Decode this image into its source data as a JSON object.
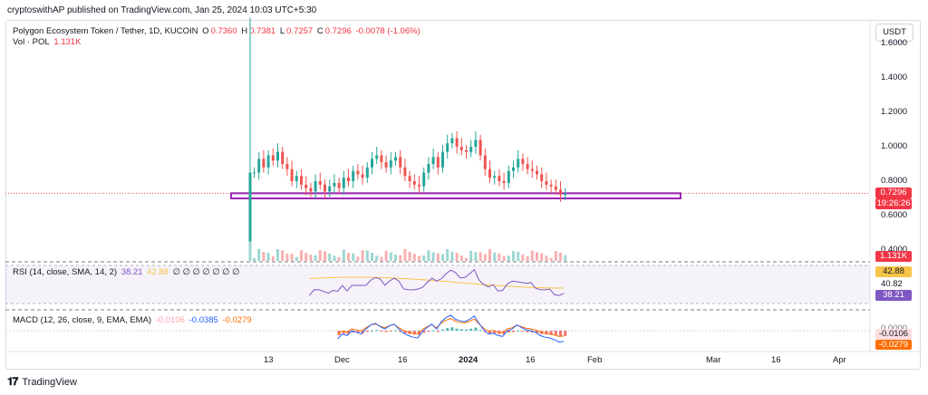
{
  "publisher": "cryptoswithAP published on TradingView.com, Jan 25, 2024 10:03 UTC+5:30",
  "legend": {
    "symbol": "Polygon Ecosystem Token / Tether, 1D, KUCOIN",
    "o_label": "O",
    "o_value": "0.7360",
    "h_label": "H",
    "h_value": "0.7381",
    "l_label": "L",
    "l_value": "0.7257",
    "c_label": "C",
    "c_value": "0.7296",
    "change": "-0.0078 (-1.06%)",
    "vol_label": "Vol · POL",
    "vol_value": "1.131K"
  },
  "rsi_legend": {
    "label": "RSI (14, close, SMA, 14, 2)",
    "rsi_value": "38.21",
    "sma_value": "42.88",
    "extras": "∅ ∅ ∅ ∅ ∅ ∅ ∅"
  },
  "macd_legend": {
    "label": "MACD (12, 26, close, 9, EMA, EMA)",
    "hist_value": "-0.0106",
    "macd_value": "-0.0385",
    "signal_value": "-0.0279"
  },
  "unit_button": "USDT",
  "price_axis": [
    "1.6000",
    "1.4000",
    "1.2000",
    "1.0000",
    "0.8000",
    "0.6000",
    "0.4000"
  ],
  "price_tag": {
    "value": "0.7296",
    "countdown": "19:26:26",
    "color": "#f23645"
  },
  "volume_tag": {
    "value": "1.131K",
    "color": "#f23645"
  },
  "rsi_axis": {
    "upper_tag": "42.88",
    "mid": "40.82",
    "lower_tag": "38.21"
  },
  "macd_axis": {
    "tag1": "-0.0106",
    "tag2": "-0.0279",
    "top": "0.0000"
  },
  "time_axis": [
    "13",
    "Dec",
    "16",
    "2024",
    "16",
    "Feb",
    "Mar",
    "16",
    "Apr"
  ],
  "footer": "TradingView",
  "colors": {
    "up": "#26a69a",
    "down": "#ef5350",
    "rsi": "#7e57c2",
    "sma": "#f7c548",
    "macd": "#2962ff",
    "signal": "#ff6d00",
    "zone": "#9c27b0"
  },
  "chart_data": {
    "type": "candlestick",
    "title": "Polygon Ecosystem Token / Tether, 1D, KUCOIN",
    "y_range": [
      0.35,
      1.75
    ],
    "x": [
      "Nov 13",
      "Dec",
      "Dec 16",
      "2024",
      "Jan 16",
      "Feb",
      "Mar",
      "Mar 16",
      "Apr"
    ],
    "support_zone": [
      0.7,
      0.73
    ],
    "last_close": 0.7296,
    "closes": [
      0.85,
      0.93,
      0.88,
      0.95,
      0.92,
      0.97,
      0.9,
      0.87,
      0.8,
      0.83,
      0.78,
      0.76,
      0.74,
      0.8,
      0.78,
      0.74,
      0.77,
      0.79,
      0.76,
      0.82,
      0.8,
      0.86,
      0.84,
      0.82,
      0.88,
      0.93,
      0.95,
      0.91,
      0.88,
      0.92,
      0.94,
      0.88,
      0.83,
      0.8,
      0.78,
      0.77,
      0.85,
      0.9,
      0.94,
      0.88,
      0.97,
      1.02,
      1.05,
      1.0,
      0.98,
      0.97,
      1.0,
      1.04,
      0.95,
      0.87,
      0.82,
      0.83,
      0.8,
      0.79,
      0.86,
      0.88,
      0.93,
      0.9,
      0.87,
      0.86,
      0.84,
      0.8,
      0.78,
      0.77,
      0.75,
      0.72,
      0.7296
    ]
  }
}
